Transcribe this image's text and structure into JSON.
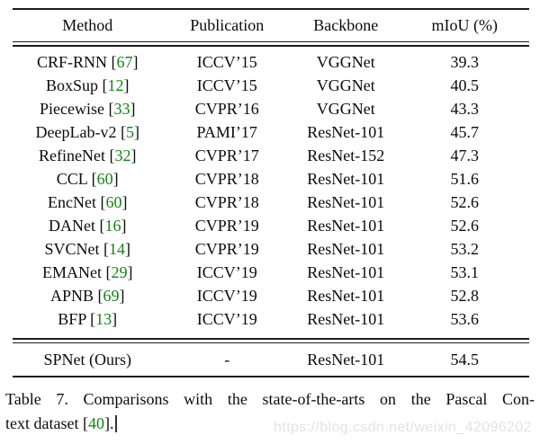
{
  "colors": {
    "background": "#ffffff",
    "text": "#0c0c0c",
    "rule": "#1d1d1d",
    "citation_green": "#0f8512",
    "watermark_gray": "#e3e3e3",
    "cursor": "#333333"
  },
  "table": {
    "columns": [
      "Method",
      "Publication",
      "Backbone",
      "mIoU (%)"
    ],
    "cite_open": "[",
    "cite_close": "]",
    "rows": [
      {
        "method": "CRF-RNN",
        "cite": "67",
        "publication": "ICCV’15",
        "backbone": "VGGNet",
        "miou": "39.3"
      },
      {
        "method": "BoxSup",
        "cite": "12",
        "publication": "ICCV’15",
        "backbone": "VGGNet",
        "miou": "40.5"
      },
      {
        "method": "Piecewise",
        "cite": "33",
        "publication": "CVPR’16",
        "backbone": "VGGNet",
        "miou": "43.3"
      },
      {
        "method": "DeepLab-v2",
        "cite": "5",
        "publication": "PAMI’17",
        "backbone": "ResNet-101",
        "miou": "45.7"
      },
      {
        "method": "RefineNet",
        "cite": "32",
        "publication": "CVPR’17",
        "backbone": "ResNet-152",
        "miou": "47.3"
      },
      {
        "method": "CCL",
        "cite": "60",
        "publication": "CVPR’18",
        "backbone": "ResNet-101",
        "miou": "51.6"
      },
      {
        "method": "EncNet",
        "cite": "60",
        "publication": "CVPR’18",
        "backbone": "ResNet-101",
        "miou": "52.6"
      },
      {
        "method": "DANet",
        "cite": "16",
        "publication": "CVPR’19",
        "backbone": "ResNet-101",
        "miou": "52.6"
      },
      {
        "method": "SVCNet",
        "cite": "14",
        "publication": "CVPR’19",
        "backbone": "ResNet-101",
        "miou": "53.2"
      },
      {
        "method": "EMANet",
        "cite": "29",
        "publication": "ICCV’19",
        "backbone": "ResNet-101",
        "miou": "53.1"
      },
      {
        "method": "APNB",
        "cite": "69",
        "publication": "ICCV’19",
        "backbone": "ResNet-101",
        "miou": "52.8"
      },
      {
        "method": "BFP",
        "cite": "13",
        "publication": "ICCV’19",
        "backbone": "ResNet-101",
        "miou": "53.6"
      }
    ],
    "final_row": {
      "method": "SPNet (Ours)",
      "publication": "-",
      "backbone": "ResNet-101",
      "miou": "54.5"
    }
  },
  "caption": {
    "line1": "Table 7. Comparisons with the state-of-the-arts on the Pascal Con-",
    "line2_before": "text dataset [",
    "cite": "40",
    "line2_after": "]."
  },
  "watermark": {
    "text": "https://blog.csdn.net/weixin_42096202"
  }
}
